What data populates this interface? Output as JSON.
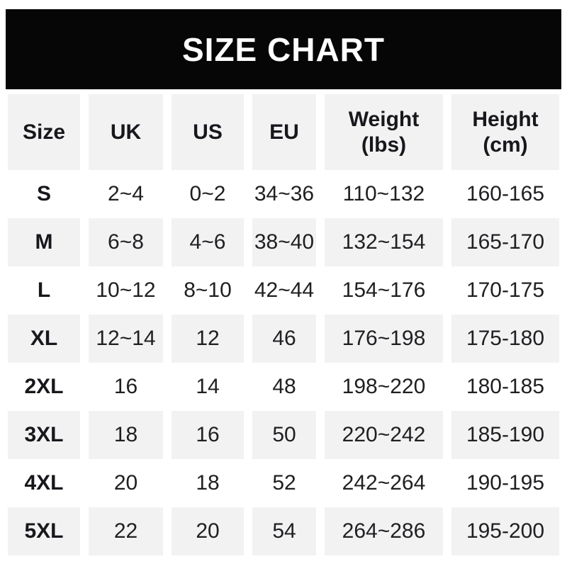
{
  "banner": {
    "title": "SIZE CHART"
  },
  "theme": {
    "banner_bg": "#060606",
    "banner_text": "#ffffff",
    "stripe": "#f2f2f3",
    "text": "#202023",
    "head_text": "#17171c"
  },
  "table": {
    "header_labels": [
      "Size",
      "UK",
      "US",
      "EU",
      "Weight\n(lbs)",
      "Height\n(cm)"
    ]
  },
  "chart_data": {
    "type": "table",
    "title": "SIZE CHART",
    "columns": [
      "Size",
      "UK",
      "US",
      "EU",
      "Weight (lbs)",
      "Height (cm)"
    ],
    "rows": [
      [
        "S",
        "2~4",
        "0~2",
        "34~36",
        "110~132",
        "160-165"
      ],
      [
        "M",
        "6~8",
        "4~6",
        "38~40",
        "132~154",
        "165-170"
      ],
      [
        "L",
        "10~12",
        "8~10",
        "42~44",
        "154~176",
        "170-175"
      ],
      [
        "XL",
        "12~14",
        "12",
        "46",
        "176~198",
        "175-180"
      ],
      [
        "2XL",
        "16",
        "14",
        "48",
        "198~220",
        "180-185"
      ],
      [
        "3XL",
        "18",
        "16",
        "50",
        "220~242",
        "185-190"
      ],
      [
        "4XL",
        "20",
        "18",
        "52",
        "242~264",
        "190-195"
      ],
      [
        "5XL",
        "22",
        "20",
        "54",
        "264~286",
        "195-200"
      ]
    ],
    "layout": {
      "striped_rows": true,
      "stripe_pattern": "header gray, then alternating white/gray",
      "column_gaps": "white vertical gutters between columns"
    }
  }
}
